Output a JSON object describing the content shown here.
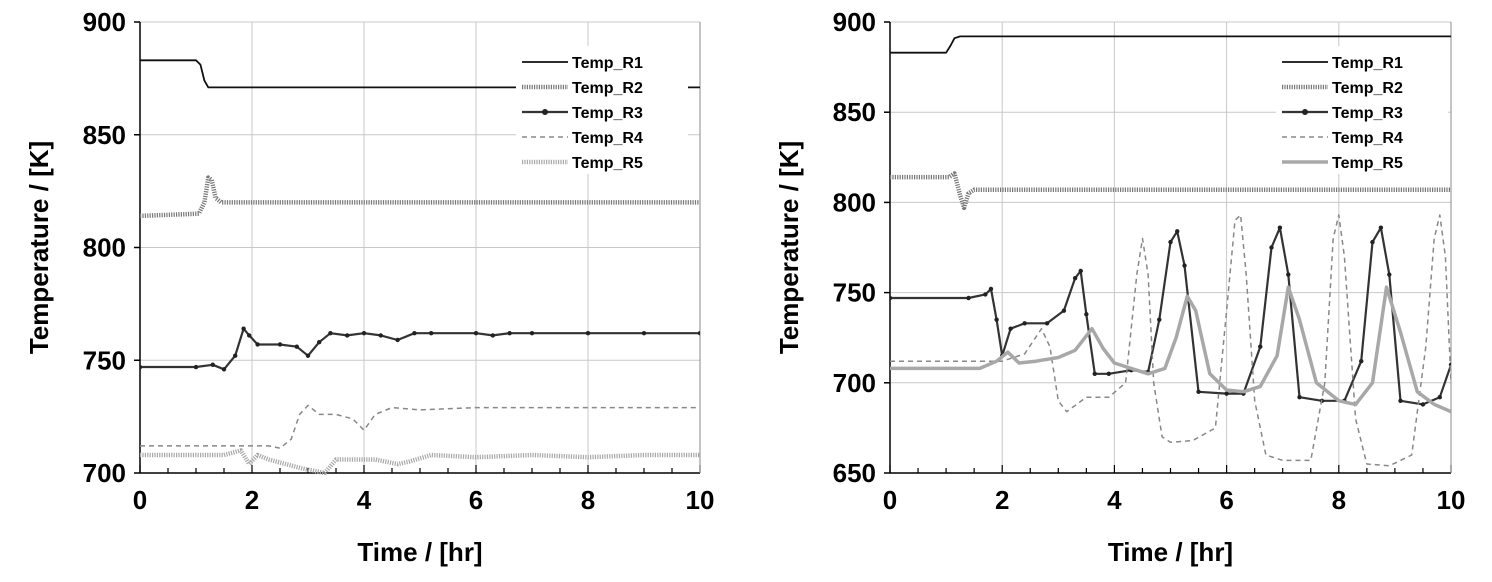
{
  "chart_data": [
    {
      "type": "line",
      "xlabel": "Time / [hr]",
      "ylabel": "Temperature / [K]",
      "xlim": [
        0,
        10
      ],
      "ylim": [
        700,
        900
      ],
      "xticks": [
        "0",
        "2",
        "4",
        "6",
        "8",
        "10"
      ],
      "yticks": [
        "700",
        "750",
        "800",
        "850",
        "900"
      ],
      "grid": true,
      "legend_position": "top-right",
      "series": [
        {
          "name": "Temp_R1",
          "style": "solid-black",
          "x": [
            0,
            1.0,
            1.08,
            1.15,
            1.22,
            1.3,
            10
          ],
          "y": [
            883,
            883,
            881,
            874,
            871,
            871,
            871
          ]
        },
        {
          "name": "Temp_R2",
          "style": "thick-gray-dotted",
          "x": [
            0,
            1.05,
            1.15,
            1.22,
            1.28,
            1.35,
            1.45,
            1.6,
            10
          ],
          "y": [
            814,
            815,
            820,
            831,
            830,
            822,
            820,
            820,
            820
          ]
        },
        {
          "name": "Temp_R3",
          "style": "dark-markers",
          "x": [
            0,
            1.0,
            1.3,
            1.5,
            1.7,
            1.85,
            1.95,
            2.1,
            2.5,
            2.8,
            3.0,
            3.2,
            3.4,
            3.7,
            4.0,
            4.3,
            4.6,
            4.9,
            5.2,
            6.0,
            6.3,
            6.6,
            7.0,
            8.0,
            9.0,
            10.0
          ],
          "y": [
            747,
            747,
            748,
            746,
            752,
            764,
            761,
            757,
            757,
            756,
            752,
            758,
            762,
            761,
            762,
            761,
            759,
            762,
            762,
            762,
            761,
            762,
            762,
            762,
            762,
            762
          ]
        },
        {
          "name": "Temp_R4",
          "style": "thin-gray-dashed",
          "x": [
            0,
            2.3,
            2.5,
            2.7,
            2.85,
            3.0,
            3.2,
            3.5,
            3.8,
            4.0,
            4.2,
            4.5,
            5.0,
            6.0,
            7.0,
            8.0,
            10.0
          ],
          "y": [
            712,
            712,
            711,
            715,
            726,
            730,
            726,
            726,
            724,
            719,
            726,
            729,
            728,
            729,
            729,
            729,
            729
          ]
        },
        {
          "name": "Temp_R5",
          "style": "thick-light-gray-dotted",
          "x": [
            0,
            1.5,
            1.8,
            1.95,
            2.1,
            2.3,
            2.6,
            2.9,
            3.1,
            3.3,
            3.5,
            3.8,
            4.2,
            4.6,
            4.8,
            5.2,
            6.0,
            7.0,
            8.0,
            9.0,
            10.0
          ],
          "y": [
            708,
            708,
            710,
            704,
            708,
            706,
            704,
            702,
            701,
            700,
            706,
            706,
            706,
            704,
            705,
            708,
            707,
            708,
            707,
            708,
            708
          ]
        }
      ]
    },
    {
      "type": "line",
      "xlabel": "Time / [hr]",
      "ylabel": "Temperature / [K]",
      "xlim": [
        0,
        10
      ],
      "ylim": [
        650,
        900
      ],
      "xticks": [
        "0",
        "2",
        "4",
        "6",
        "8",
        "10"
      ],
      "yticks": [
        "650",
        "700",
        "750",
        "800",
        "850",
        "900"
      ],
      "grid": true,
      "legend_position": "top-right",
      "series": [
        {
          "name": "Temp_R1",
          "style": "solid-black",
          "x": [
            0,
            1.0,
            1.08,
            1.15,
            1.25,
            10
          ],
          "y": [
            883,
            883,
            887,
            891,
            892,
            892
          ]
        },
        {
          "name": "Temp_R2",
          "style": "thick-gray-dotted",
          "x": [
            0,
            1.05,
            1.15,
            1.25,
            1.32,
            1.4,
            1.5,
            10
          ],
          "y": [
            814,
            814,
            816,
            804,
            797,
            805,
            807,
            807
          ]
        },
        {
          "name": "Temp_R3",
          "style": "dark-markers",
          "x": [
            0,
            1.4,
            1.7,
            1.8,
            1.9,
            2.0,
            2.15,
            2.4,
            2.8,
            3.1,
            3.3,
            3.4,
            3.5,
            3.65,
            3.9,
            4.3,
            4.6,
            4.8,
            5.0,
            5.12,
            5.25,
            5.5,
            6.0,
            6.3,
            6.6,
            6.8,
            6.95,
            7.1,
            7.3,
            7.7,
            8.1,
            8.4,
            8.6,
            8.75,
            8.9,
            9.1,
            9.5,
            9.8,
            10.0
          ],
          "y": [
            747,
            747,
            749,
            752,
            735,
            715,
            730,
            733,
            733,
            740,
            758,
            762,
            738,
            705,
            705,
            707,
            706,
            735,
            778,
            784,
            765,
            695,
            694,
            694,
            720,
            775,
            786,
            760,
            692,
            690,
            690,
            712,
            778,
            786,
            760,
            690,
            688,
            692,
            710
          ]
        },
        {
          "name": "Temp_R4",
          "style": "thin-gray-dashed",
          "x": [
            0,
            2.0,
            2.4,
            2.7,
            2.85,
            3.0,
            3.15,
            3.5,
            3.9,
            4.2,
            4.4,
            4.5,
            4.6,
            4.7,
            4.85,
            5.0,
            5.4,
            5.8,
            6.0,
            6.15,
            6.25,
            6.35,
            6.5,
            6.7,
            7.0,
            7.5,
            7.75,
            7.9,
            8.0,
            8.1,
            8.3,
            8.5,
            8.9,
            9.3,
            9.55,
            9.7,
            9.8,
            9.9,
            10.0
          ],
          "y": [
            712,
            712,
            716,
            730,
            720,
            690,
            684,
            692,
            692,
            700,
            760,
            780,
            760,
            700,
            670,
            667,
            668,
            675,
            740,
            790,
            793,
            760,
            690,
            660,
            657,
            657,
            700,
            780,
            793,
            770,
            680,
            655,
            654,
            660,
            720,
            780,
            793,
            770,
            700
          ]
        },
        {
          "name": "Temp_R5",
          "style": "thick-light-gray-solid",
          "x": [
            0,
            1.6,
            1.9,
            2.1,
            2.3,
            2.6,
            3.0,
            3.3,
            3.5,
            3.6,
            3.8,
            4.0,
            4.3,
            4.6,
            4.9,
            5.1,
            5.3,
            5.45,
            5.7,
            6.0,
            6.3,
            6.6,
            6.9,
            7.1,
            7.3,
            7.6,
            8.0,
            8.3,
            8.6,
            8.85,
            9.1,
            9.4,
            9.7,
            10.0
          ],
          "y": [
            708,
            708,
            712,
            717,
            711,
            712,
            714,
            718,
            726,
            730,
            719,
            711,
            708,
            705,
            708,
            725,
            748,
            740,
            705,
            696,
            695,
            698,
            715,
            753,
            735,
            700,
            690,
            688,
            700,
            753,
            728,
            695,
            688,
            684
          ]
        }
      ]
    }
  ]
}
